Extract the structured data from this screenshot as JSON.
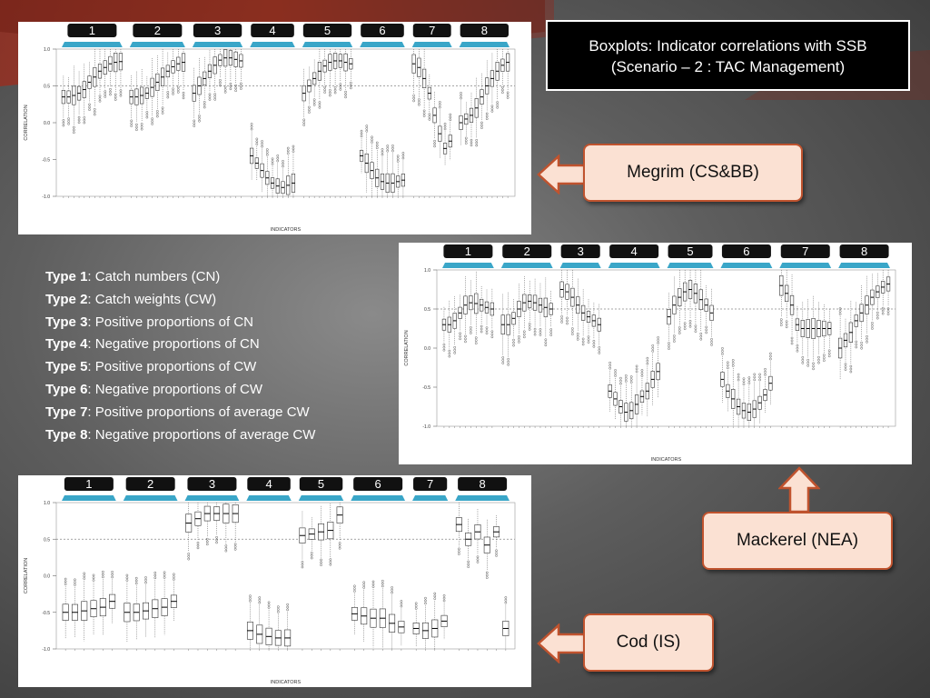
{
  "title": {
    "line1": "Boxplots: Indicator correlations with SSB",
    "line2": "(Scenario – 2 : TAC Management)"
  },
  "callouts": {
    "megrim": "Megrim (CS&BB)",
    "mackerel": "Mackerel (NEA)",
    "cod": "Cod (IS)"
  },
  "types": [
    {
      "label": "Type 1",
      "desc": ": Catch numbers (CN)"
    },
    {
      "label": "Type 2",
      "desc": ": Catch weights (CW)"
    },
    {
      "label": "Type 3",
      "desc": ": Positive proportions of CN"
    },
    {
      "label": "Type 4",
      "desc": ": Negative proportions of CN"
    },
    {
      "label": "Type 5",
      "desc": ": Positive proportions of CW"
    },
    {
      "label": "Type 6",
      "desc": ": Negative proportions of CW"
    },
    {
      "label": "Type 7",
      "desc": ": Positive proportions of average CW"
    },
    {
      "label": "Type 8",
      "desc": ": Negative proportions of average CW"
    }
  ],
  "colors": {
    "group_header": "#111111",
    "group_bracket": "#3aa6c8",
    "callout_fill": "#fbe1d3",
    "callout_border": "#c0532e",
    "reference_line": "#888888"
  },
  "chart_data": [
    {
      "type": "boxplot",
      "name": "Megrim (CS&BB)",
      "ylabel": "CORRELATION",
      "xlabel": "INDICATORS",
      "ylim": [
        -1,
        1
      ],
      "yticks": [
        "1.0",
        "0.5",
        "0.0",
        "-0.5",
        "-1.0"
      ],
      "reference_line": 0.5,
      "groups": [
        "1",
        "2",
        "3",
        "4",
        "5",
        "6",
        "7",
        "8"
      ],
      "series": [
        {
          "group": "1",
          "medians": [
            0.35,
            0.35,
            0.37,
            0.4,
            0.45,
            0.55,
            0.62,
            0.7,
            0.75,
            0.8,
            0.82,
            0.83
          ]
        },
        {
          "group": "2",
          "medians": [
            0.35,
            0.35,
            0.37,
            0.4,
            0.48,
            0.55,
            0.62,
            0.7,
            0.76,
            0.8,
            0.82
          ]
        },
        {
          "group": "3",
          "medians": [
            0.4,
            0.5,
            0.6,
            0.7,
            0.78,
            0.85,
            0.88,
            0.88,
            0.86,
            0.84
          ]
        },
        {
          "group": "4",
          "medians": [
            -0.45,
            -0.55,
            -0.65,
            -0.75,
            -0.82,
            -0.86,
            -0.88,
            -0.85,
            -0.82
          ]
        },
        {
          "group": "5",
          "medians": [
            0.4,
            0.5,
            0.6,
            0.7,
            0.77,
            0.82,
            0.84,
            0.84,
            0.82,
            0.8
          ]
        },
        {
          "group": "6",
          "medians": [
            -0.45,
            -0.55,
            -0.65,
            -0.75,
            -0.8,
            -0.82,
            -0.82,
            -0.8,
            -0.78
          ]
        },
        {
          "group": "7",
          "medians": [
            0.8,
            0.75,
            0.6,
            0.4,
            0.1,
            -0.15,
            -0.35,
            -0.25
          ]
        },
        {
          "group": "8",
          "medians": [
            0.0,
            0.05,
            0.1,
            0.2,
            0.35,
            0.5,
            0.6,
            0.7,
            0.78,
            0.82
          ]
        }
      ]
    },
    {
      "type": "boxplot",
      "name": "Mackerel (NEA)",
      "ylabel": "CORRELATION",
      "xlabel": "INDICATORS",
      "ylim": [
        -1,
        1
      ],
      "yticks": [
        "1.0",
        "0.5",
        "0.0",
        "-0.5",
        "-1.0"
      ],
      "reference_line": 0.5,
      "groups": [
        "1",
        "2",
        "3",
        "4",
        "5",
        "6",
        "7",
        "8"
      ],
      "series": [
        {
          "group": "1",
          "medians": [
            0.3,
            0.3,
            0.35,
            0.45,
            0.55,
            0.58,
            0.57,
            0.55,
            0.52,
            0.5
          ]
        },
        {
          "group": "2",
          "medians": [
            0.3,
            0.3,
            0.38,
            0.5,
            0.58,
            0.6,
            0.58,
            0.55,
            0.52,
            0.5
          ]
        },
        {
          "group": "3",
          "medians": [
            0.75,
            0.72,
            0.65,
            0.55,
            0.45,
            0.4,
            0.35,
            0.3
          ]
        },
        {
          "group": "4",
          "medians": [
            -0.55,
            -0.65,
            -0.75,
            -0.82,
            -0.8,
            -0.72,
            -0.62,
            -0.55,
            -0.4,
            -0.3
          ]
        },
        {
          "group": "5",
          "medians": [
            0.4,
            0.55,
            0.65,
            0.72,
            0.75,
            0.7,
            0.62,
            0.55,
            0.45
          ]
        },
        {
          "group": "6",
          "medians": [
            -0.4,
            -0.55,
            -0.65,
            -0.75,
            -0.8,
            -0.82,
            -0.78,
            -0.7,
            -0.6,
            -0.45
          ]
        },
        {
          "group": "7",
          "medians": [
            0.8,
            0.7,
            0.55,
            0.3,
            0.25,
            0.25,
            0.25,
            0.25,
            0.25,
            0.25
          ]
        },
        {
          "group": "8",
          "medians": [
            0.0,
            0.1,
            0.2,
            0.35,
            0.45,
            0.55,
            0.65,
            0.72,
            0.78,
            0.82
          ]
        }
      ]
    },
    {
      "type": "boxplot",
      "name": "Cod (IS)",
      "ylabel": "CORRELATION",
      "xlabel": "INDICATORS",
      "ylim": [
        -1,
        1
      ],
      "yticks": [
        "1.0",
        "0.5",
        "0.0",
        "-0.5",
        "-1.0"
      ],
      "reference_line": 0.5,
      "groups": [
        "1",
        "2",
        "3",
        "4",
        "5",
        "6",
        "7",
        "8"
      ],
      "series": [
        {
          "group": "1",
          "medians": [
            -0.5,
            -0.5,
            -0.48,
            -0.45,
            -0.43,
            -0.35
          ]
        },
        {
          "group": "2",
          "medians": [
            -0.5,
            -0.5,
            -0.48,
            -0.45,
            -0.43,
            -0.35
          ]
        },
        {
          "group": "3",
          "medians": [
            0.72,
            0.78,
            0.85,
            0.85,
            0.85,
            0.85
          ]
        },
        {
          "group": "4",
          "medians": [
            -0.75,
            -0.8,
            -0.83,
            -0.85,
            -0.85
          ]
        },
        {
          "group": "5",
          "medians": [
            0.55,
            0.57,
            0.6,
            0.62,
            0.83
          ]
        },
        {
          "group": "6",
          "medians": [
            -0.52,
            -0.55,
            -0.58,
            -0.58,
            -0.65,
            -0.7
          ]
        },
        {
          "group": "7",
          "medians": [
            -0.72,
            -0.75,
            -0.72,
            -0.62
          ]
        },
        {
          "group": "8",
          "medians": [
            0.7,
            0.5,
            0.6,
            0.42,
            0.6,
            -0.72
          ]
        }
      ]
    }
  ]
}
